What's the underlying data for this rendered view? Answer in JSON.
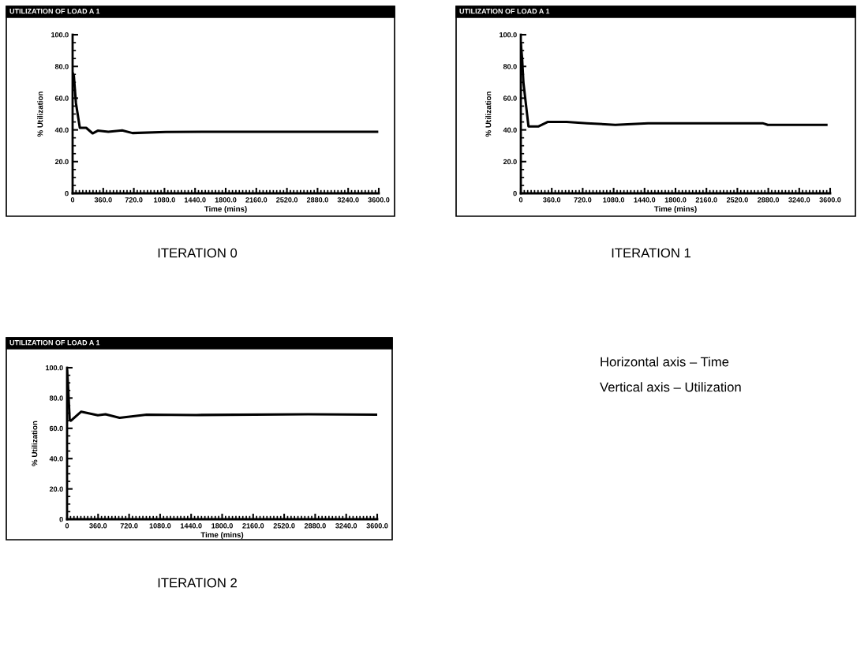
{
  "chart_data": [
    {
      "type": "line",
      "title": "UTILIZATION OF LOAD A 1",
      "subtitle": "ITERATION 0",
      "xlabel": "Time (mins)",
      "ylabel": "% Utilization",
      "color": "#000000",
      "x": [
        0,
        15,
        39,
        85,
        160,
        235,
        296,
        420,
        583,
        704,
        1097,
        1800,
        3580
      ],
      "values": [
        76,
        74,
        57,
        41.3,
        41.3,
        37.8,
        39.5,
        38.8,
        39.7,
        38,
        38.7,
        38.8,
        38.8
      ],
      "xlim": [
        0,
        3600
      ],
      "xticks": [
        0,
        {
          "value": 360,
          "label": "360.0"
        },
        {
          "value": 720,
          "label": "720.0"
        },
        {
          "value": 1080,
          "label": "1080.0"
        },
        {
          "value": 1440,
          "label": "1440.0"
        },
        {
          "value": 1800,
          "label": "1800.0"
        },
        {
          "value": 2160,
          "label": "2160.0"
        },
        {
          "value": 2520,
          "label": "2520.0"
        },
        {
          "value": 2880,
          "label": "2880.0"
        },
        {
          "value": 3240,
          "label": "3240.0"
        },
        {
          "value": 3600,
          "label": "3600.0"
        }
      ],
      "ylim": [
        0,
        100
      ],
      "yticks": [
        0,
        {
          "value": 20,
          "label": "20.0"
        },
        {
          "value": 40,
          "label": "40.0"
        },
        {
          "value": 60,
          "label": "60.0"
        },
        {
          "value": 80,
          "label": "80.0"
        },
        {
          "value": 100,
          "label": "100.0"
        }
      ],
      "grid": false,
      "legend": false
    },
    {
      "type": "line",
      "title": "UTILIZATION OF LOAD A 1",
      "subtitle": "ITERATION 1",
      "xlabel": "Time (mins)",
      "ylabel": "% Utilization",
      "color": "#000000",
      "x": [
        0,
        15,
        30,
        89,
        207,
        311,
        533,
        770,
        1100,
        1481,
        2815,
        2874,
        3556
      ],
      "values": [
        94.7,
        85,
        70,
        42.2,
        42.2,
        45,
        45,
        44.2,
        43.2,
        44.2,
        44.2,
        43.2,
        43.2
      ],
      "xlim": [
        0,
        3600
      ],
      "xticks": [
        0,
        {
          "value": 360,
          "label": "360.0"
        },
        {
          "value": 720,
          "label": "720.0"
        },
        {
          "value": 1080,
          "label": "1080.0"
        },
        {
          "value": 1440,
          "label": "1440.0"
        },
        {
          "value": 1800,
          "label": "1800.0"
        },
        {
          "value": 2160,
          "label": "2160.0"
        },
        {
          "value": 2520,
          "label": "2520.0"
        },
        {
          "value": 2880,
          "label": "2880.0"
        },
        {
          "value": 3240,
          "label": "3240.0"
        },
        {
          "value": 3600,
          "label": "3600.0"
        }
      ],
      "ylim": [
        0,
        100
      ],
      "yticks": [
        0,
        {
          "value": 20,
          "label": "20.0"
        },
        {
          "value": 40,
          "label": "40.0"
        },
        {
          "value": 60,
          "label": "60.0"
        },
        {
          "value": 80,
          "label": "80.0"
        },
        {
          "value": 100,
          "label": "100.0"
        }
      ],
      "grid": false,
      "legend": false
    },
    {
      "type": "line",
      "title": "UTILIZATION OF LOAD A 1",
      "subtitle": "ITERATION 2",
      "xlabel": "Time (mins)",
      "ylabel": "% Utilization",
      "color": "#000000",
      "x": [
        0,
        10,
        30,
        45,
        164,
        357,
        446,
        610,
        923,
        1500,
        2800,
        3586
      ],
      "values": [
        98,
        90,
        66,
        65,
        71,
        68.6,
        69.3,
        66.9,
        69,
        68.8,
        69.3,
        69
      ],
      "xlim": [
        0,
        3600
      ],
      "xticks": [
        0,
        {
          "value": 360,
          "label": "360.0"
        },
        {
          "value": 720,
          "label": "720.0"
        },
        {
          "value": 1080,
          "label": "1080.0"
        },
        {
          "value": 1440,
          "label": "1440.0"
        },
        {
          "value": 1800,
          "label": "1800.0"
        },
        {
          "value": 2160,
          "label": "2160.0"
        },
        {
          "value": 2520,
          "label": "2520.0"
        },
        {
          "value": 2880,
          "label": "2880.0"
        },
        {
          "value": 3240,
          "label": "3240.0"
        },
        {
          "value": 3600,
          "label": "3600.0"
        }
      ],
      "ylim": [
        0,
        100
      ],
      "yticks": [
        0,
        {
          "value": 20,
          "label": "20.0"
        },
        {
          "value": 40,
          "label": "40.0"
        },
        {
          "value": 60,
          "label": "60.0"
        },
        {
          "value": 80,
          "label": "80.0"
        },
        {
          "value": 100,
          "label": "100.0"
        }
      ],
      "grid": false,
      "legend": false,
      "annotations": [
        "Horizontal axis – Time",
        "Vertical axis – Utilization"
      ]
    }
  ]
}
